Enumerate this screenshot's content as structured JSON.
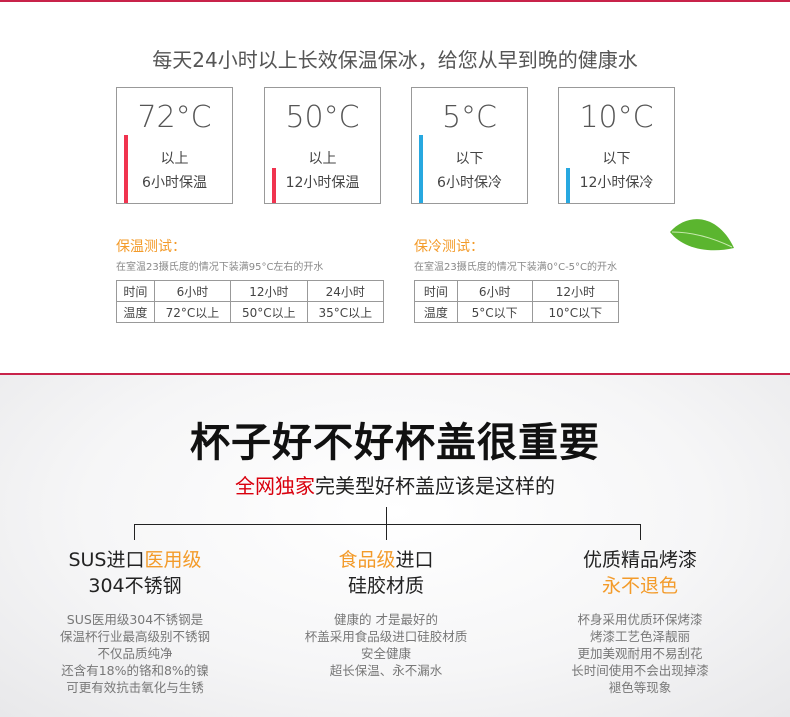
{
  "headline": "每天24小时以上长效保温保冰，给您从早到晚的健康水",
  "cards": [
    {
      "temp": "72°C",
      "line1": "以上",
      "line2": "6小时保温",
      "color": "#f0334f",
      "level": 0.58
    },
    {
      "temp": "50°C",
      "line1": "以上",
      "line2": "12小时保温",
      "color": "#f0334f",
      "level": 0.3
    },
    {
      "temp": "5°C",
      "line1": "以下",
      "line2": "6小时保冷",
      "color": "#27a8e0",
      "level": 0.58
    },
    {
      "temp": "10°C",
      "line1": "以下",
      "line2": "12小时保冷",
      "color": "#27a8e0",
      "level": 0.3
    }
  ],
  "warm_test": {
    "title": "保温测试：",
    "desc": "在室温23摄氏度的情况下装满95°C左右的开水",
    "rows": [
      [
        "时间",
        "6小时",
        "12小时",
        "24小时"
      ],
      [
        "温度",
        "72°C以上",
        "50°C以上",
        "35°C以上"
      ]
    ]
  },
  "cold_test": {
    "title": "保冷测试：",
    "desc": "在室温23摄氏度的情况下装满0°C-5°C的开水",
    "rows": [
      [
        "时间",
        "6小时",
        "12小时"
      ],
      [
        "温度",
        "5°C以下",
        "10°C以下"
      ]
    ]
  },
  "section2": {
    "title": "杯子好不好杯盖很重要",
    "tag_red": "全网独家",
    "tag_rest": "完美型好杯盖应该是这样的"
  },
  "columns": [
    {
      "h1a": "SUS进口",
      "h1b": "医用级",
      "h2a": "304不锈钢",
      "h2b": "",
      "lines": [
        "SUS医用级304不锈钢是",
        "保温杯行业最高级别不锈钢",
        "不仅品质纯净",
        "还含有18%的铬和8%的镍",
        "可更有效抗击氧化与生锈"
      ]
    },
    {
      "h1a": "",
      "h1b": "食品级",
      "h1c": "进口",
      "h2a": "硅胶材质",
      "lines": [
        "健康的 才是最好的",
        "杯盖采用食品级进口硅胶材质",
        "安全健康",
        "超长保温、永不漏水"
      ]
    },
    {
      "h1a": "优质精品烤漆",
      "h2b": "永不退色",
      "lines": [
        "杯身采用优质环保烤漆",
        "烤漆工艺色泽靓丽",
        "更加美观耐用不易刮花",
        "长时间使用不会出现掉漆",
        "褪色等现象"
      ]
    }
  ]
}
